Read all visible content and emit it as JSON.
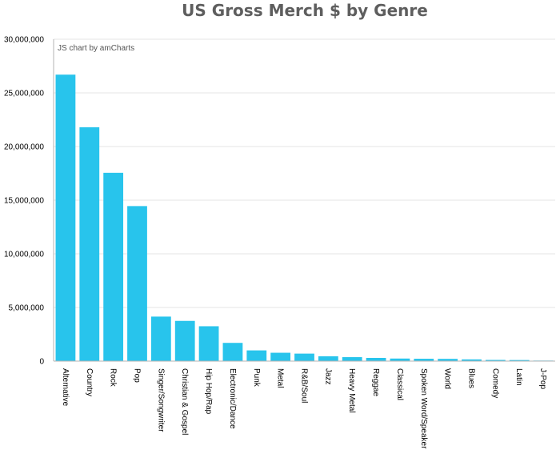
{
  "chart_data": {
    "type": "bar",
    "title": "US Gross Merch $ by Genre",
    "xlabel": "",
    "ylabel": "",
    "categories": [
      "Alternative",
      "Country",
      "Rock",
      "Pop",
      "Singer/Songwriter",
      "Christian & Gospel",
      "Hip Hop/Rap",
      "Electronic/Dance",
      "Punk",
      "Metal",
      "R&B/Soul",
      "Jazz",
      "Heavy Metal",
      "Reggae",
      "Classical",
      "Spoken Word/Speaker",
      "World",
      "Blues",
      "Comedy",
      "Latin",
      "J-Pop"
    ],
    "values": [
      26700000,
      21800000,
      17550000,
      14450000,
      4150000,
      3750000,
      3250000,
      1700000,
      1000000,
      780000,
      700000,
      450000,
      370000,
      300000,
      240000,
      220000,
      210000,
      160000,
      110000,
      100000,
      50000
    ],
    "ylim": [
      0,
      30000000
    ],
    "yticks": [
      0,
      5000000,
      10000000,
      15000000,
      20000000,
      25000000,
      30000000
    ],
    "ytick_labels": [
      "0",
      "5,000,000",
      "10,000,000",
      "15,000,000",
      "20,000,000",
      "25,000,000",
      "30,000,000"
    ],
    "grid": true,
    "legend": "none",
    "colors": {
      "bar": "#28c4ec",
      "grid": "#e6e6e6",
      "axis": "#b3b3b3"
    }
  },
  "credit_text": "JS chart by amCharts"
}
